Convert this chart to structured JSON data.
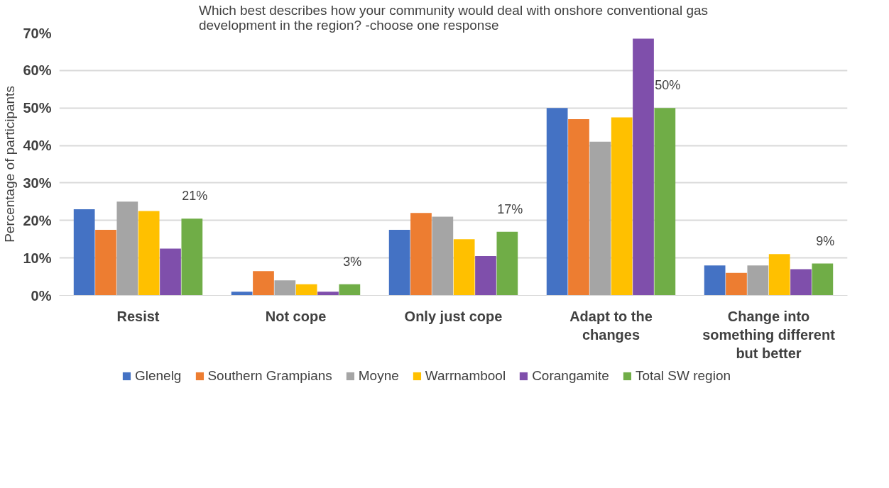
{
  "chart_data": {
    "type": "bar",
    "title": "Which best describes how your community would deal with onshore conventional gas\ndevelopment in the region? -choose one response",
    "ylabel": "Percentage of participants",
    "categories": [
      "Resist",
      "Not cope",
      "Only just cope",
      "Adapt to the\nchanges",
      "Change into\nsomething different\nbut better"
    ],
    "series": [
      {
        "name": "Glenelg",
        "color": "#4472c4",
        "values": [
          23,
          1,
          17.5,
          50,
          8
        ]
      },
      {
        "name": "Southern Grampians",
        "color": "#ed7d31",
        "values": [
          17.5,
          6.5,
          22,
          47,
          6
        ]
      },
      {
        "name": "Moyne",
        "color": "#a5a5a5",
        "values": [
          25,
          4,
          21,
          41,
          8
        ]
      },
      {
        "name": "Warrnambool",
        "color": "#ffc000",
        "values": [
          22.5,
          3,
          15,
          47.5,
          11
        ]
      },
      {
        "name": "Corangamite",
        "color": "#7f4fab",
        "values": [
          12.5,
          1,
          10.5,
          68.5,
          7
        ]
      },
      {
        "name": "Total SW region",
        "color": "#70ad47",
        "values": [
          20.5,
          3,
          17,
          50,
          8.5
        ],
        "value_labels": [
          "21%",
          "3%",
          "17%",
          "50%",
          "9%"
        ]
      }
    ],
    "ylim": [
      0,
      70
    ],
    "yticks": [
      {
        "value": 0,
        "label": "0%"
      },
      {
        "value": 10,
        "label": "10%"
      },
      {
        "value": 20,
        "label": "20%"
      },
      {
        "value": 30,
        "label": "30%"
      },
      {
        "value": 40,
        "label": "40%"
      },
      {
        "value": 50,
        "label": "50%"
      },
      {
        "value": 60,
        "label": "60%"
      },
      {
        "value": 70,
        "label": "70%"
      }
    ],
    "grid": "y",
    "legend": "bottom"
  }
}
